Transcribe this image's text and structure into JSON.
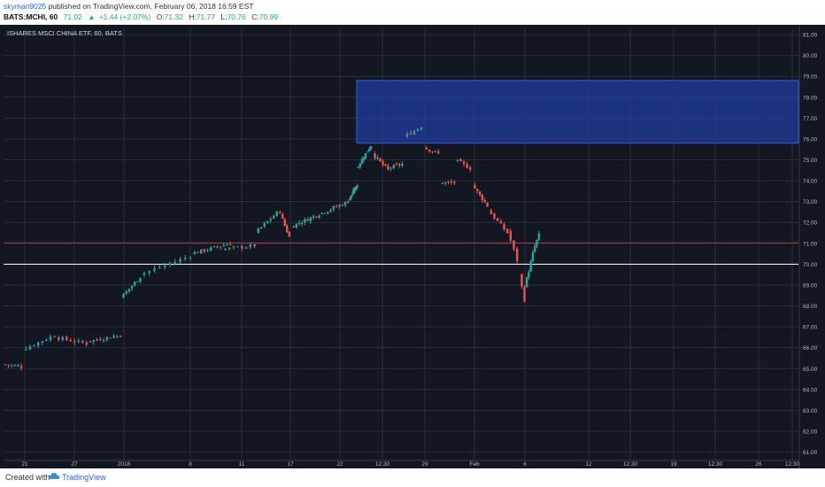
{
  "header": {
    "author": "skyman9025",
    "published_text": "published on TradingView.com, February 06, 2018 16:59 EST",
    "symbol": "BATS:MCHI, 60",
    "last": "71.02",
    "change_icon": "triangle-up-icon",
    "change": "+1.44 (+2.07%)",
    "o_label": "O:",
    "o_value": "71.32",
    "h_label": "H:",
    "h_value": "71.77",
    "l_label": "L:",
    "l_value": "70.76",
    "c_label": "C:",
    "c_value": "70.99"
  },
  "footer": {
    "created_with": "Created with",
    "brand": "TradingView",
    "logo_icon": "tradingview-cloud-icon"
  },
  "colors": {
    "background": "#131722",
    "grid": "#2a2e39",
    "up": "#26a69a",
    "down": "#ef5350",
    "zone_fill": "#1e3a9a",
    "resistance_line": "#b23a48",
    "support_line": "#ffffff"
  },
  "chart_data": {
    "type": "candlestick",
    "title": "ISHARES MSCI CHINA ETF, 60, BATS",
    "ylim": [
      60.6,
      81.3
    ],
    "yticks": [
      "81.00",
      "80.00",
      "79.00",
      "78.00",
      "77.00",
      "76.00",
      "75.00",
      "74.00",
      "73.00",
      "72.00",
      "71.00",
      "70.00",
      "69.00",
      "68.00",
      "67.00",
      "66.00",
      "65.00",
      "64.00",
      "63.00",
      "62.00",
      "61.00"
    ],
    "xticks": [
      "21",
      "27",
      "2018",
      "8",
      "11",
      "17",
      "22",
      "12:30",
      "29",
      "Feb",
      "6",
      "12",
      "12:30",
      "19",
      "12:30",
      "26",
      "12:30"
    ],
    "grid": true,
    "zone": {
      "from": 75.8,
      "to": 78.8,
      "start_tick": "22",
      "end": "right-edge"
    },
    "horizontal_lines": [
      {
        "value": 71.02,
        "role": "resistance"
      },
      {
        "value": 70.0,
        "role": "support",
        "label": "70.00"
      }
    ],
    "segments": [
      {
        "start": 65.2,
        "end": 65.1,
        "n": 6
      },
      {
        "start": 65.9,
        "end": 66.6,
        "n": 8
      },
      {
        "start": 66.5,
        "end": 66.2,
        "n": 8
      },
      {
        "start": 66.3,
        "end": 66.6,
        "n": 10
      },
      {
        "start": 68.4,
        "end": 69.4,
        "n": 7
      },
      {
        "start": 69.5,
        "end": 70.4,
        "n": 10
      },
      {
        "start": 70.5,
        "end": 71.0,
        "n": 12
      },
      {
        "start": 70.7,
        "end": 70.9,
        "n": 8
      },
      {
        "start": 71.5,
        "end": 72.6,
        "n": 8
      },
      {
        "start": 72.4,
        "end": 71.3,
        "n": 4
      },
      {
        "start": 71.8,
        "end": 72.4,
        "n": 10
      },
      {
        "start": 72.4,
        "end": 73.0,
        "n": 10
      },
      {
        "start": 73.1,
        "end": 73.8,
        "n": 10
      },
      {
        "start": 74.6,
        "end": 75.7,
        "n": 8
      },
      {
        "start": 75.3,
        "end": 74.5,
        "n": 6
      },
      {
        "start": 74.6,
        "end": 74.8,
        "n": 5
      },
      {
        "start": 76.1,
        "end": 76.6,
        "n": 5
      },
      {
        "start": 75.6,
        "end": 75.3,
        "n": 5
      },
      {
        "start": 73.9,
        "end": 73.9,
        "n": 5
      },
      {
        "start": 75.0,
        "end": 74.6,
        "n": 5
      },
      {
        "start": 73.8,
        "end": 72.8,
        "n": 6
      },
      {
        "start": 72.6,
        "end": 71.5,
        "n": 6
      },
      {
        "start": 71.6,
        "end": 70.2,
        "n": 3
      },
      {
        "start": 69.5,
        "end": 68.3,
        "n": 2
      },
      {
        "start": 68.9,
        "end": 70.5,
        "n": 4
      },
      {
        "start": 70.6,
        "end": 71.4,
        "n": 3
      }
    ]
  }
}
